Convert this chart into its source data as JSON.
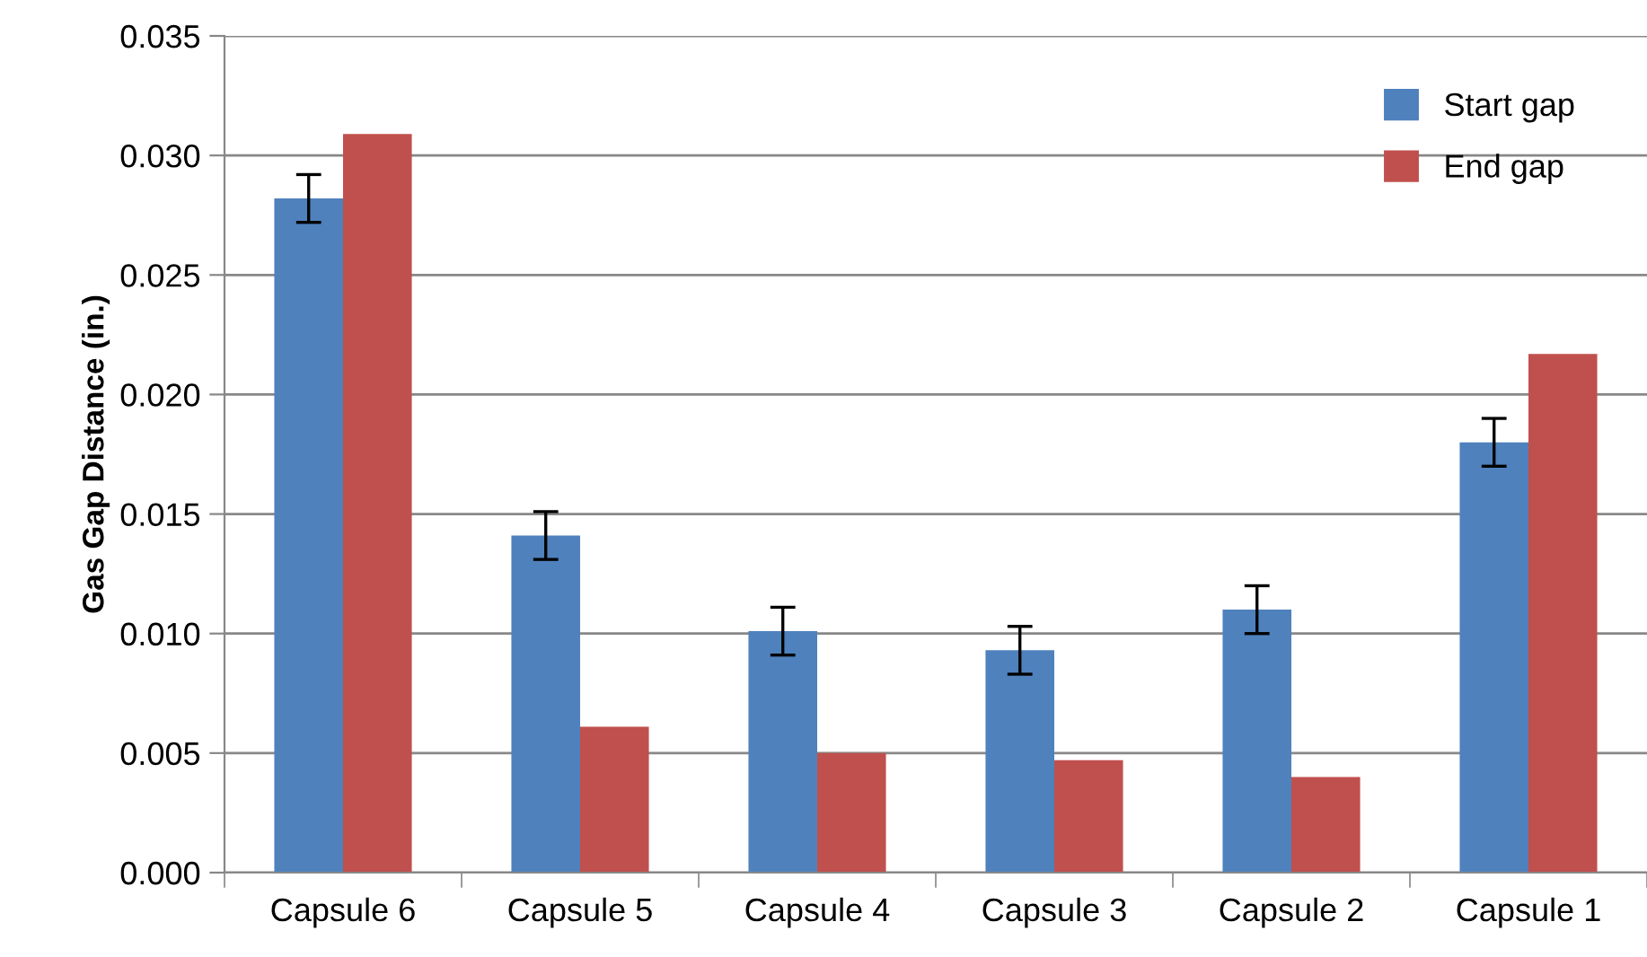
{
  "chart_data": {
    "type": "bar",
    "ylabel": "Gas Gap Distance (in.)",
    "categories": [
      "Capsule 6",
      "Capsule 5",
      "Capsule 4",
      "Capsule 3",
      "Capsule 2",
      "Capsule 1"
    ],
    "series": [
      {
        "name": "Start gap",
        "color": "#4f81bd",
        "values": [
          0.0282,
          0.0141,
          0.0101,
          0.0093,
          0.011,
          0.018
        ],
        "errors": [
          0.001,
          0.001,
          0.001,
          0.001,
          0.001,
          0.001
        ]
      },
      {
        "name": "End gap",
        "color": "#c0504d",
        "values": [
          0.0309,
          0.0061,
          0.005,
          0.0047,
          0.004,
          0.0217
        ]
      }
    ],
    "ylim": [
      0,
      0.035
    ],
    "yticks": [
      {
        "value": 0,
        "label": "0.000"
      },
      {
        "value": 0.005,
        "label": "0.005"
      },
      {
        "value": 0.01,
        "label": "0.010"
      },
      {
        "value": 0.015,
        "label": "0.015"
      },
      {
        "value": 0.02,
        "label": "0.020"
      },
      {
        "value": 0.025,
        "label": "0.025"
      },
      {
        "value": 0.03,
        "label": "0.030"
      },
      {
        "value": 0.035,
        "label": "0.035"
      }
    ],
    "grid": "y",
    "legend": "top right"
  }
}
